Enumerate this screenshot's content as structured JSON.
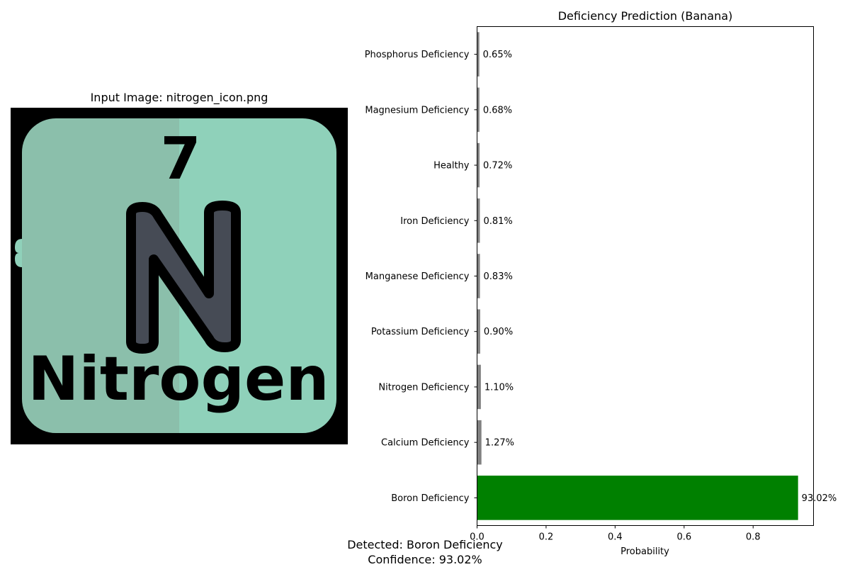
{
  "left_panel": {
    "title": "Input Image: nitrogen_icon.png",
    "icon": {
      "number": "7",
      "symbol": "N",
      "name": "Nitrogen",
      "colors": {
        "frame": "#000000",
        "tile_left": "#8bbfab",
        "tile_right": "#8fd1ba",
        "letter_fill": "#464b55",
        "outline": "#000000"
      }
    }
  },
  "chart_data": {
    "type": "bar",
    "orientation": "horizontal",
    "title": "Deficiency Prediction (Banana)",
    "xlabel": "Probability",
    "ylabel": "",
    "xlim": [
      0,
      0.975
    ],
    "xticks": [
      "0.0",
      "0.2",
      "0.4",
      "0.6",
      "0.8"
    ],
    "xtick_values": [
      0,
      0.2,
      0.4,
      0.6,
      0.8
    ],
    "grid": false,
    "categories": [
      "Boron Deficiency",
      "Calcium Deficiency",
      "Nitrogen Deficiency",
      "Potassium Deficiency",
      "Manganese Deficiency",
      "Iron Deficiency",
      "Healthy",
      "Magnesium Deficiency",
      "Phosphorus Deficiency"
    ],
    "values": [
      0.9302,
      0.0127,
      0.011,
      0.009,
      0.0083,
      0.0081,
      0.0072,
      0.0068,
      0.0065
    ],
    "data_labels": [
      "93.02%",
      "1.27%",
      "1.10%",
      "0.90%",
      "0.83%",
      "0.81%",
      "0.72%",
      "0.68%",
      "0.65%"
    ],
    "colors": {
      "highlight": "#008000",
      "other": "#808080"
    }
  },
  "footer": {
    "detected": "Detected: Boron Deficiency",
    "confidence": "Confidence: 93.02%"
  }
}
